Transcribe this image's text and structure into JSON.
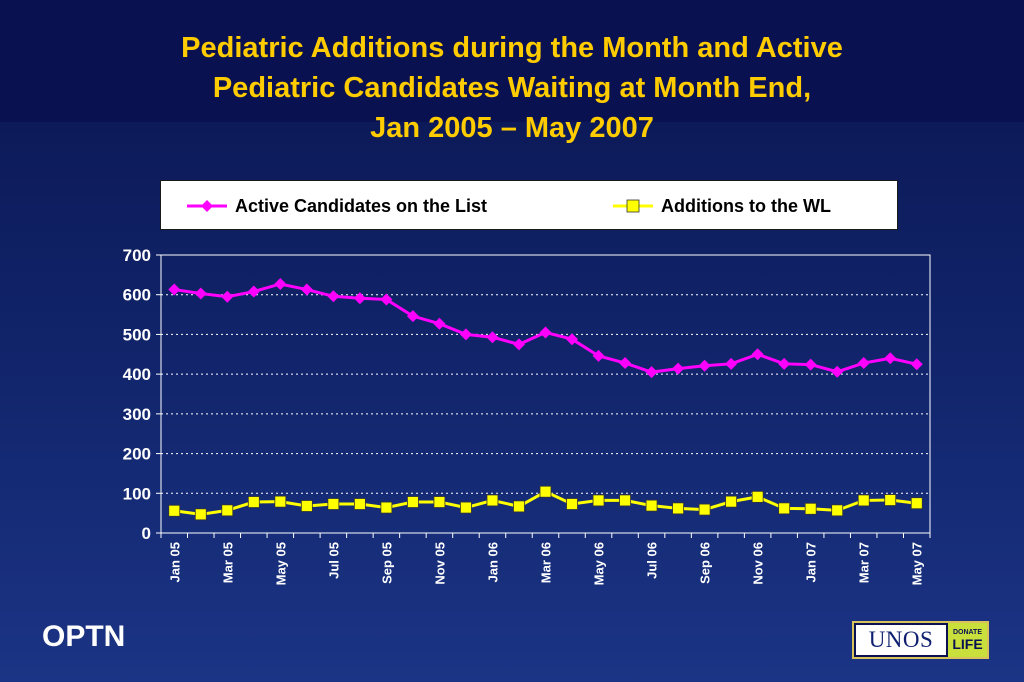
{
  "slide": {
    "title_lines": [
      "Pediatric Additions during the Month and Active",
      "Pediatric Candidates Waiting at Month End,",
      "Jan 2005 – May 2007"
    ],
    "footer_label": "OPTN",
    "logo": {
      "main": "UNOS",
      "badge_top": "DONATE",
      "badge_bottom": "LIFE"
    }
  },
  "colors": {
    "title": "#ffcc00",
    "background_top": "#0a1550",
    "background_bottom": "#1b3485",
    "active_series": "#ff00ff",
    "additions_series": "#ffff00",
    "grid": "#ffffff",
    "axis_text": "#ffffff"
  },
  "chart_data": {
    "type": "line",
    "title": "Pediatric Additions during the Month and Active Pediatric Candidates Waiting at Month End, Jan 2005 – May 2007",
    "xlabel": "",
    "ylabel": "",
    "ylim": [
      0,
      700
    ],
    "yticks": [
      0,
      100,
      200,
      300,
      400,
      500,
      600,
      700
    ],
    "grid": "horizontal dotted",
    "legend_position": "top",
    "x": [
      "Jan 05",
      "Feb 05",
      "Mar 05",
      "Apr 05",
      "May 05",
      "Jun 05",
      "Jul 05",
      "Aug 05",
      "Sep 05",
      "Oct 05",
      "Nov 05",
      "Dec 05",
      "Jan 06",
      "Feb 06",
      "Mar 06",
      "Apr 06",
      "May 06",
      "Jun 06",
      "Jul 06",
      "Aug 06",
      "Sep 06",
      "Oct 06",
      "Nov 06",
      "Dec 06",
      "Jan 07",
      "Feb 07",
      "Mar 07",
      "Apr 07",
      "May 07"
    ],
    "x_tick_labels": [
      "Jan 05",
      "Mar 05",
      "May 05",
      "Jul 05",
      "Sep 05",
      "Nov 05",
      "Jan 06",
      "Mar 06",
      "May 06",
      "Jul 06",
      "Sep 06",
      "Nov 06",
      "Jan 07",
      "Mar 07",
      "May 07"
    ],
    "series": [
      {
        "name": "Active Candidates on the List",
        "marker": "diamond",
        "color": "#ff00ff",
        "values": [
          613,
          603,
          595,
          608,
          627,
          613,
          596,
          591,
          588,
          546,
          527,
          500,
          493,
          475,
          505,
          488,
          446,
          428,
          405,
          414,
          421,
          426,
          450,
          426,
          424,
          406,
          428,
          440,
          425
        ]
      },
      {
        "name": "Additions to the WL",
        "marker": "square",
        "color": "#ffff00",
        "values": [
          56,
          47,
          57,
          78,
          79,
          68,
          73,
          73,
          64,
          78,
          78,
          64,
          82,
          67,
          104,
          73,
          82,
          82,
          69,
          62,
          59,
          79,
          91,
          62,
          61,
          57,
          82,
          83,
          75
        ]
      }
    ]
  }
}
